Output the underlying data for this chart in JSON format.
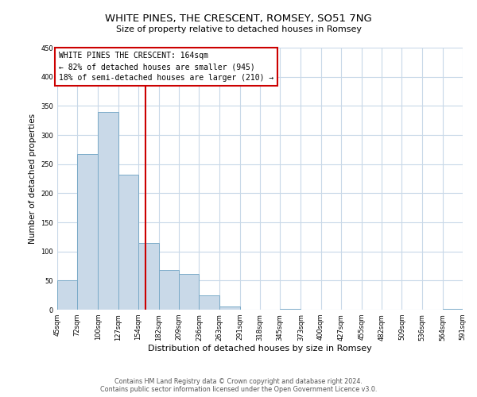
{
  "title": "WHITE PINES, THE CRESCENT, ROMSEY, SO51 7NG",
  "subtitle": "Size of property relative to detached houses in Romsey",
  "xlabel": "Distribution of detached houses by size in Romsey",
  "ylabel": "Number of detached properties",
  "bar_edges": [
    45,
    72,
    100,
    127,
    154,
    182,
    209,
    236,
    263,
    291,
    318,
    345,
    373,
    400,
    427,
    455,
    482,
    509,
    536,
    564,
    591
  ],
  "bar_heights": [
    50,
    267,
    340,
    232,
    114,
    68,
    62,
    25,
    6,
    0,
    0,
    2,
    0,
    0,
    0,
    0,
    0,
    0,
    0,
    2
  ],
  "bar_color": "#c9d9e8",
  "bar_edge_color": "#7aaac8",
  "vline_x": 164,
  "vline_color": "#cc0000",
  "annotation_line1": "WHITE PINES THE CRESCENT: 164sqm",
  "annotation_line2": "← 82% of detached houses are smaller (945)",
  "annotation_line3": "18% of semi-detached houses are larger (210) →",
  "annotation_box_color": "#cc0000",
  "ylim": [
    0,
    450
  ],
  "tick_labels": [
    "45sqm",
    "72sqm",
    "100sqm",
    "127sqm",
    "154sqm",
    "182sqm",
    "209sqm",
    "236sqm",
    "263sqm",
    "291sqm",
    "318sqm",
    "345sqm",
    "373sqm",
    "400sqm",
    "427sqm",
    "455sqm",
    "482sqm",
    "509sqm",
    "536sqm",
    "564sqm",
    "591sqm"
  ],
  "footer1": "Contains HM Land Registry data © Crown copyright and database right 2024.",
  "footer2": "Contains public sector information licensed under the Open Government Licence v3.0.",
  "background_color": "#ffffff",
  "grid_color": "#c8d8e8",
  "title_fontsize": 9.5,
  "subtitle_fontsize": 8,
  "ylabel_fontsize": 7.5,
  "xlabel_fontsize": 8,
  "tick_fontsize": 6,
  "annotation_fontsize": 7,
  "footer_fontsize": 5.8
}
